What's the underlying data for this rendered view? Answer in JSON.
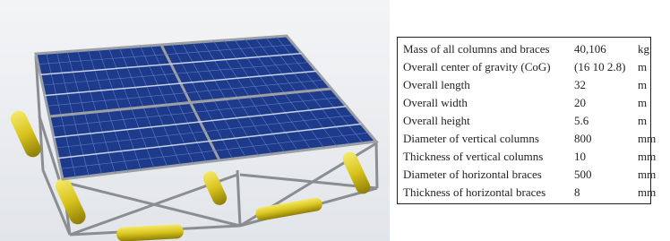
{
  "table": {
    "rows": [
      [
        "Mass of all columns and braces",
        "40,106",
        "kg"
      ],
      [
        "Overall center of gravity (CoG)",
        "(16 10 2.8)",
        "m"
      ],
      [
        "Overall length",
        "32",
        "m"
      ],
      [
        "Overall width",
        "20",
        "m"
      ],
      [
        "Overall height",
        "5.6",
        "m"
      ],
      [
        "Diameter of vertical columns",
        "800",
        "mm"
      ],
      [
        "Thickness of vertical columns",
        "10",
        "mm"
      ],
      [
        "Diameter of horizontal braces",
        "500",
        "mm"
      ],
      [
        "Thickness of horizontal braces",
        "8",
        "mm"
      ]
    ]
  }
}
